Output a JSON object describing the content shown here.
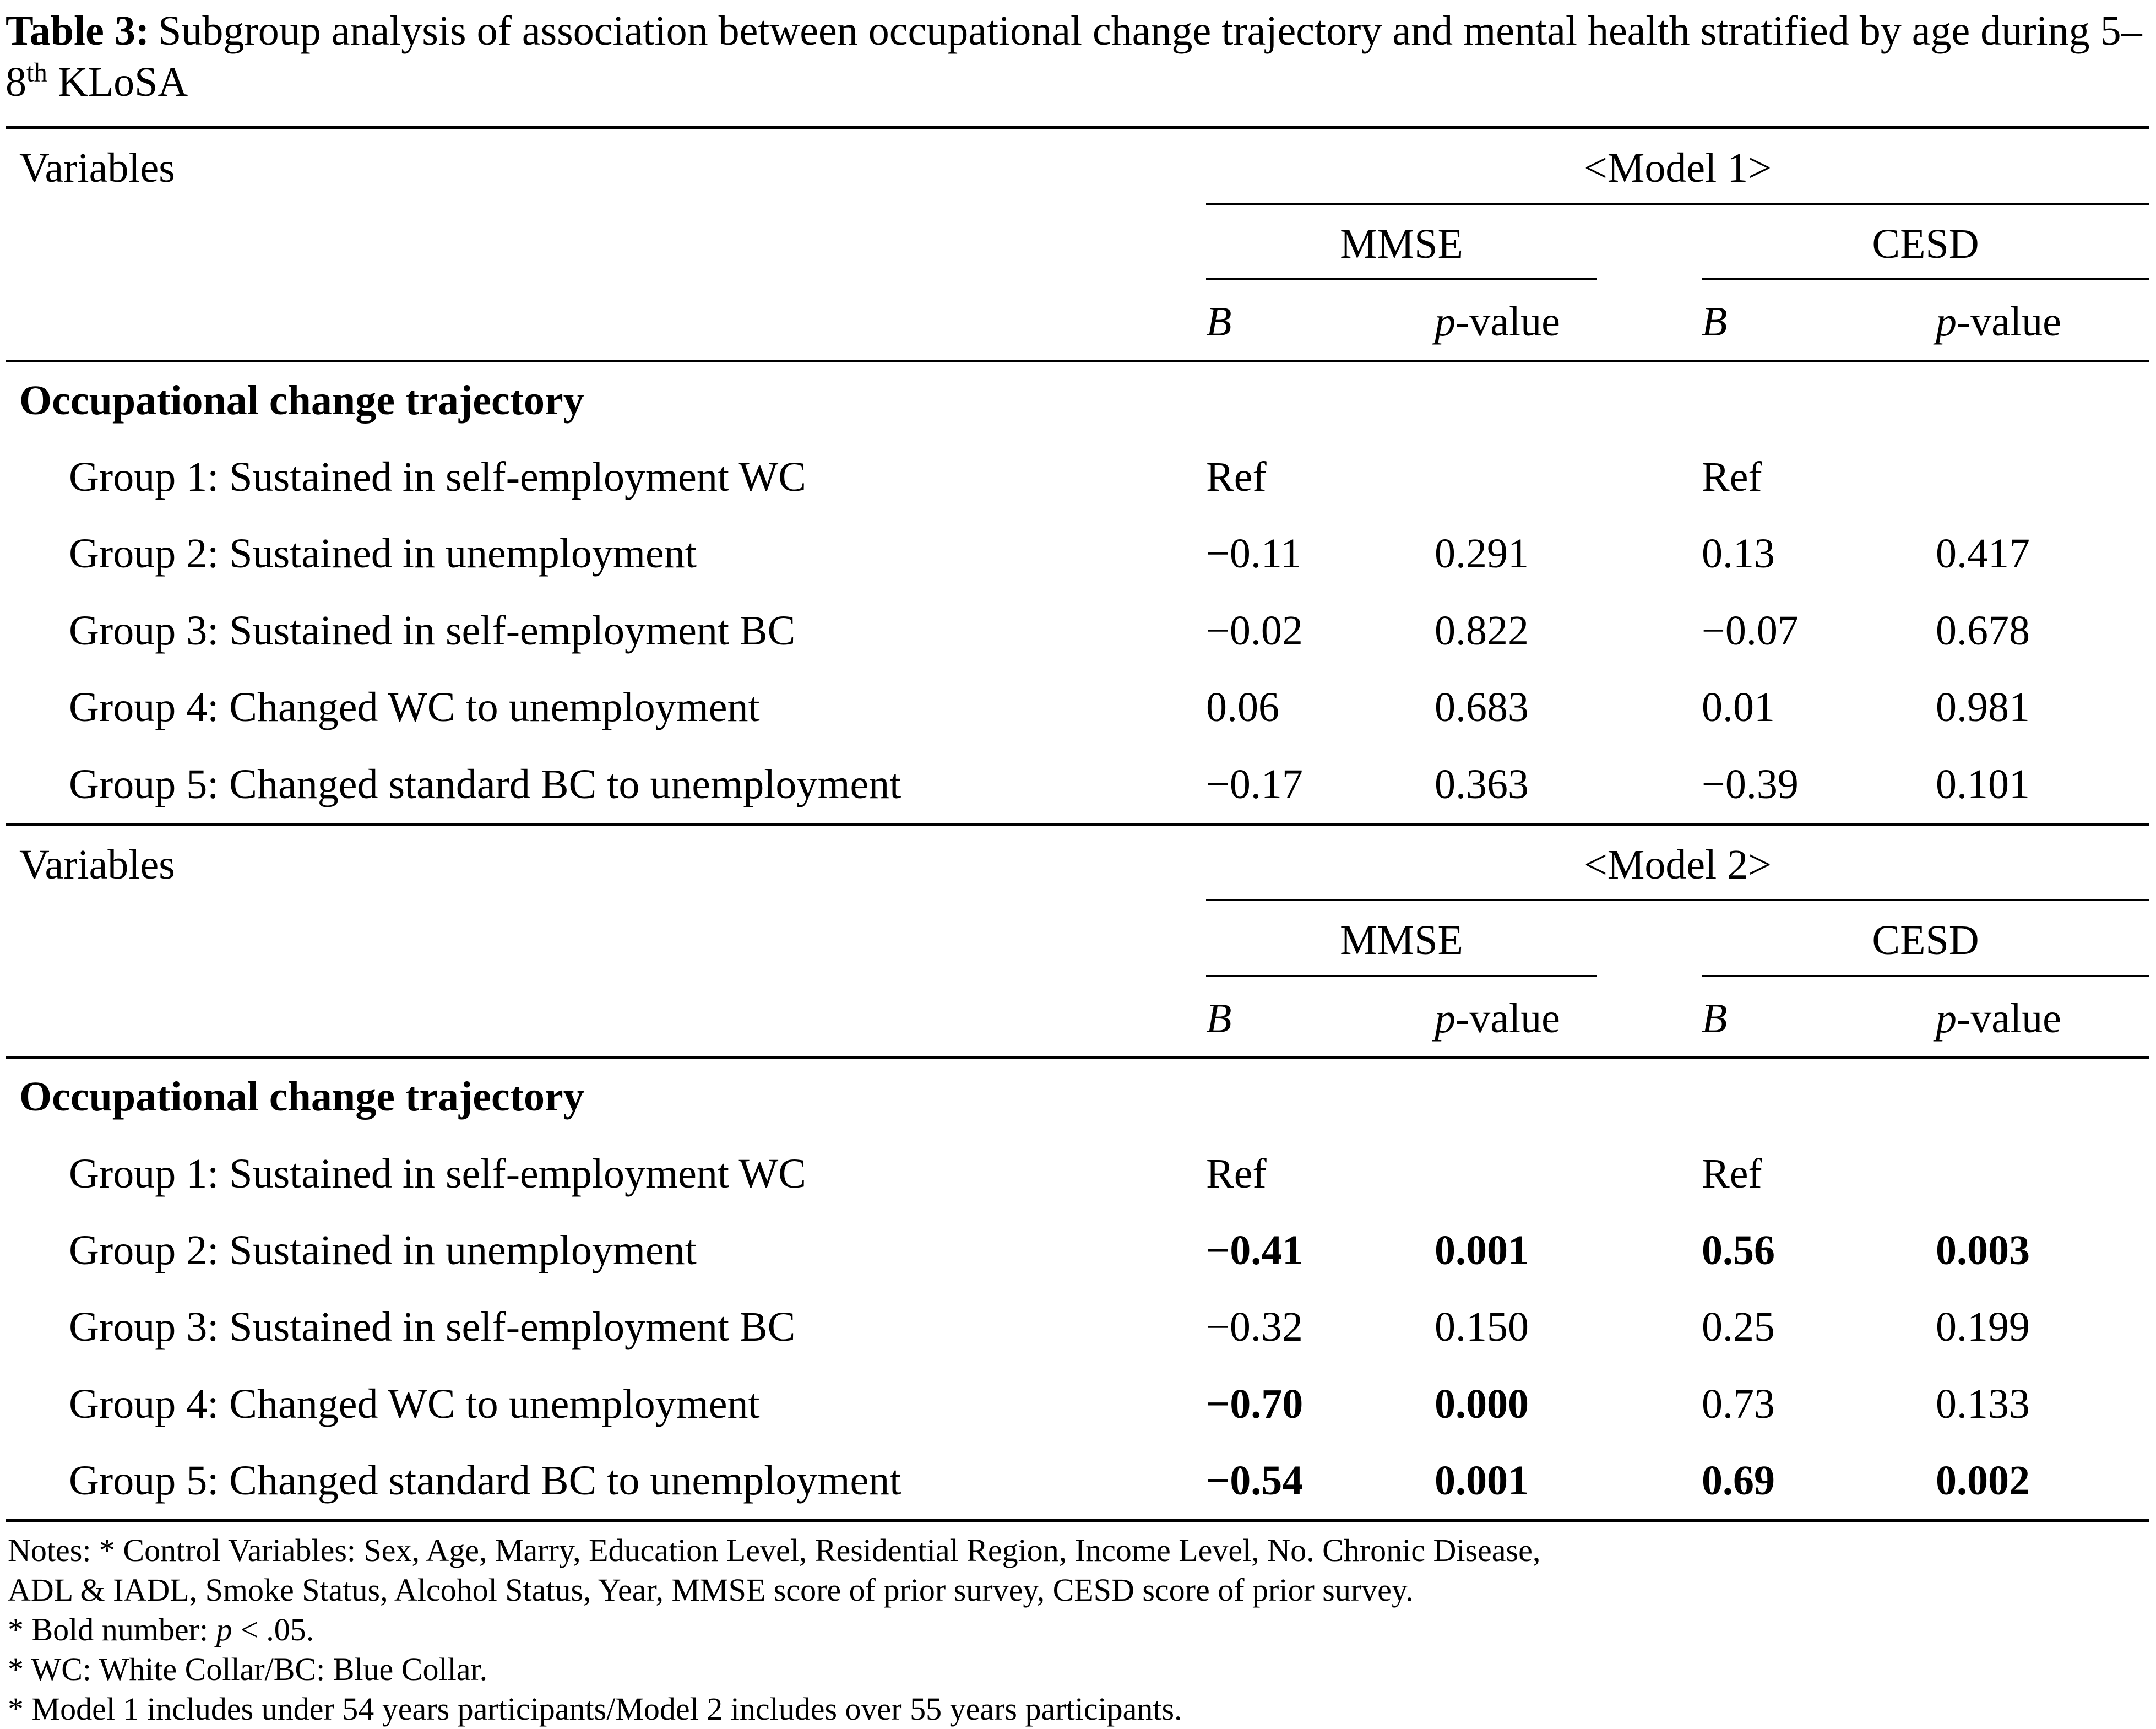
{
  "title": {
    "label": "Table 3:",
    "body": "Subgroup analysis of association between occupational change trajectory and mental health stratified by age during 5–8",
    "sup": "th",
    "tail": " KLoSA"
  },
  "table": {
    "variables_label": "Variables",
    "col_b": "B",
    "col_p_italic": "p",
    "col_p_rest": "-value",
    "section_label": "Occupational change trajectory",
    "models": [
      {
        "name": "<Model 1>",
        "subgroups": [
          "MMSE",
          "CESD"
        ],
        "rows": [
          {
            "label": "Group 1: Sustained in self-employment WC",
            "c": [
              "Ref",
              "",
              "Ref",
              ""
            ],
            "bold": [
              false,
              false,
              false,
              false
            ]
          },
          {
            "label": "Group 2: Sustained in unemployment",
            "c": [
              "−0.11",
              "0.291",
              "0.13",
              "0.417"
            ],
            "bold": [
              false,
              false,
              false,
              false
            ]
          },
          {
            "label": "Group 3: Sustained in self-employment BC",
            "c": [
              "−0.02",
              "0.822",
              "−0.07",
              "0.678"
            ],
            "bold": [
              false,
              false,
              false,
              false
            ]
          },
          {
            "label": "Group 4: Changed WC to unemployment",
            "c": [
              "0.06",
              "0.683",
              "0.01",
              "0.981"
            ],
            "bold": [
              false,
              false,
              false,
              false
            ]
          },
          {
            "label": "Group 5: Changed standard BC to unemployment",
            "c": [
              "−0.17",
              "0.363",
              "−0.39",
              "0.101"
            ],
            "bold": [
              false,
              false,
              false,
              false
            ]
          }
        ]
      },
      {
        "name": "<Model 2>",
        "subgroups": [
          "MMSE",
          "CESD"
        ],
        "rows": [
          {
            "label": "Group 1: Sustained in self-employment WC",
            "c": [
              "Ref",
              "",
              "Ref",
              ""
            ],
            "bold": [
              false,
              false,
              false,
              false
            ]
          },
          {
            "label": "Group 2: Sustained in unemployment",
            "c": [
              "−0.41",
              "0.001",
              "0.56",
              "0.003"
            ],
            "bold": [
              true,
              true,
              true,
              true
            ]
          },
          {
            "label": "Group 3: Sustained in self-employment BC",
            "c": [
              "−0.32",
              "0.150",
              "0.25",
              "0.199"
            ],
            "bold": [
              false,
              false,
              false,
              false
            ]
          },
          {
            "label": "Group 4: Changed WC to unemployment",
            "c": [
              "−0.70",
              "0.000",
              "0.73",
              "0.133"
            ],
            "bold": [
              true,
              true,
              false,
              false
            ]
          },
          {
            "label": "Group 5: Changed standard BC to unemployment",
            "c": [
              "−0.54",
              "0.001",
              "0.69",
              "0.002"
            ],
            "bold": [
              true,
              true,
              true,
              true
            ]
          }
        ]
      }
    ]
  },
  "notes": {
    "line1": "Notes: * Control Variables: Sex, Age, Marry, Education Level, Residential Region, Income Level, No. Chronic Disease,",
    "line2": "ADL & IADL, Smoke Status, Alcohol Status, Year, MMSE score of prior survey, CESD score of prior survey.",
    "line3_pre": "* Bold number: ",
    "line3_italic": "p",
    "line3_post": " < .05.",
    "line4": "* WC: White Collar/BC: Blue Collar.",
    "line5": "* Model 1 includes under 54 years participants/Model 2 includes over 55 years participants."
  }
}
